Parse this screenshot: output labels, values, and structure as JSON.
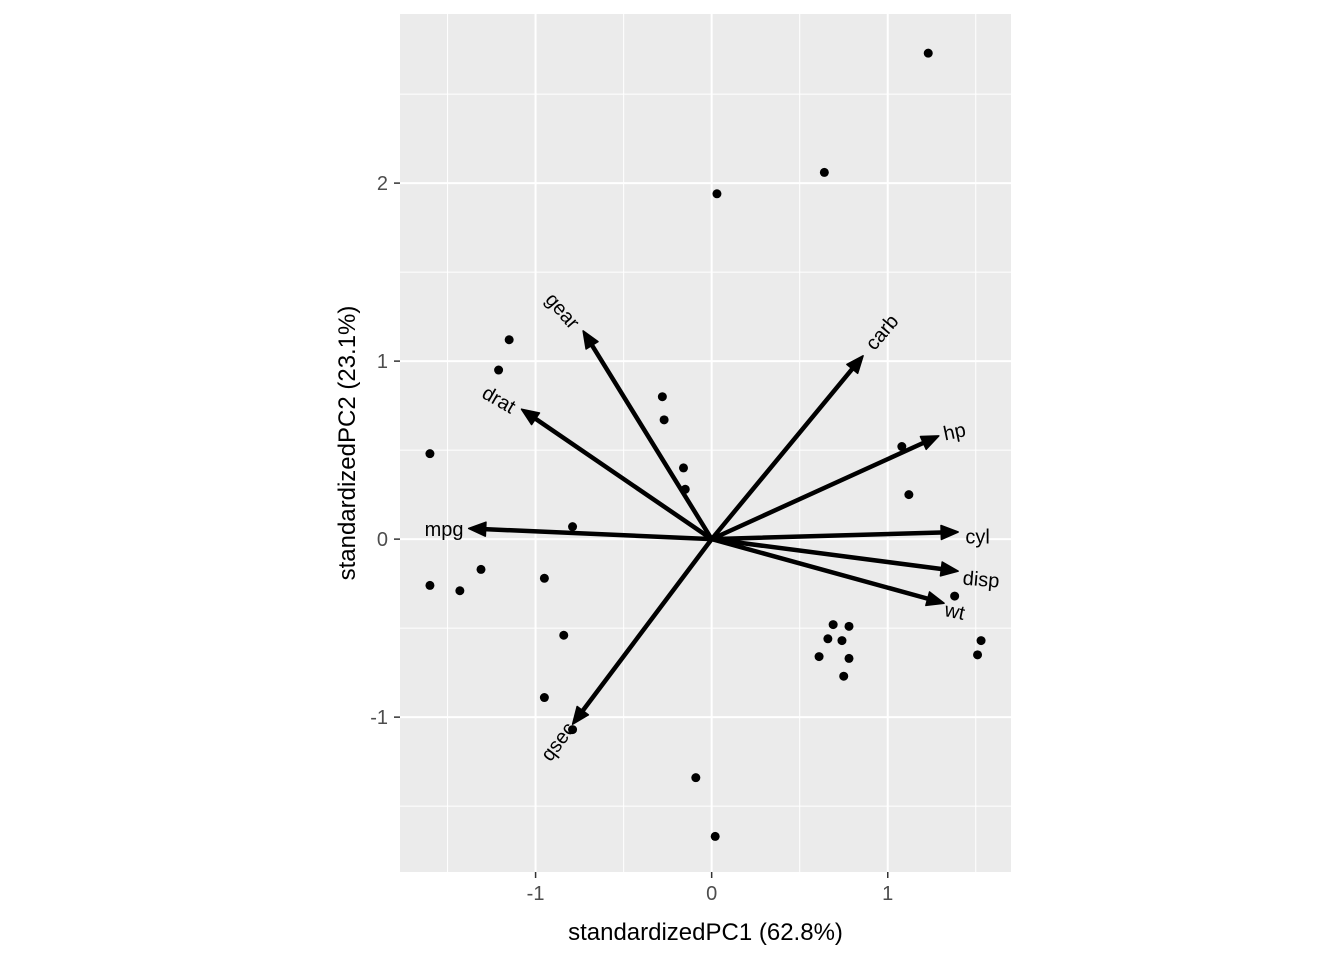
{
  "chart_data": {
    "type": "scatter",
    "subtype": "pca-biplot",
    "xlabel": "standardizedPC1 (62.8%)",
    "ylabel": "standardizedPC2 (23.1%)",
    "xlim": [
      -1.77,
      1.7
    ],
    "ylim": [
      -1.87,
      2.95
    ],
    "x_ticks": [
      -1,
      0,
      1
    ],
    "x_tick_labels": [
      "-1",
      "0",
      "1"
    ],
    "y_ticks": [
      -1,
      0,
      1,
      2
    ],
    "y_tick_labels": [
      "-1",
      "0",
      "1",
      "2"
    ],
    "grid": true,
    "background": "#ebebeb",
    "gridline_color": "#ffffff",
    "point_color": "#000000",
    "arrow_color": "#000000",
    "points": [
      {
        "x": 1.23,
        "y": 2.73
      },
      {
        "x": 0.64,
        "y": 2.06
      },
      {
        "x": 0.03,
        "y": 1.94
      },
      {
        "x": -1.15,
        "y": 1.12
      },
      {
        "x": -1.21,
        "y": 0.95
      },
      {
        "x": -0.28,
        "y": 0.8
      },
      {
        "x": -0.27,
        "y": 0.67
      },
      {
        "x": -1.6,
        "y": 0.48
      },
      {
        "x": -0.16,
        "y": 0.4
      },
      {
        "x": -0.15,
        "y": 0.28
      },
      {
        "x": 1.08,
        "y": 0.52
      },
      {
        "x": 1.12,
        "y": 0.25
      },
      {
        "x": -0.79,
        "y": 0.07
      },
      {
        "x": -1.31,
        "y": -0.17
      },
      {
        "x": -0.95,
        "y": -0.22
      },
      {
        "x": -1.6,
        "y": -0.26
      },
      {
        "x": -1.43,
        "y": -0.29
      },
      {
        "x": 1.38,
        "y": -0.32
      },
      {
        "x": -0.84,
        "y": -0.54
      },
      {
        "x": 0.69,
        "y": -0.48
      },
      {
        "x": 0.78,
        "y": -0.49
      },
      {
        "x": 0.66,
        "y": -0.56
      },
      {
        "x": 0.74,
        "y": -0.57
      },
      {
        "x": 1.53,
        "y": -0.57
      },
      {
        "x": 1.51,
        "y": -0.65
      },
      {
        "x": 0.61,
        "y": -0.66
      },
      {
        "x": 0.78,
        "y": -0.67
      },
      {
        "x": 0.75,
        "y": -0.77
      },
      {
        "x": -0.95,
        "y": -0.89
      },
      {
        "x": -0.79,
        "y": -1.07
      },
      {
        "x": -0.09,
        "y": -1.34
      },
      {
        "x": 0.02,
        "y": -1.67
      }
    ],
    "loadings": [
      {
        "name": "mpg",
        "x": -1.38,
        "y": 0.06,
        "label_x": -1.52,
        "label_y": 0.05,
        "angle": 0
      },
      {
        "name": "cyl",
        "x": 1.4,
        "y": 0.04,
        "label_x": 1.51,
        "label_y": 0.01,
        "angle": 0
      },
      {
        "name": "disp",
        "x": 1.4,
        "y": -0.18,
        "label_x": 1.53,
        "label_y": -0.23,
        "angle": 5
      },
      {
        "name": "hp",
        "x": 1.29,
        "y": 0.58,
        "label_x": 1.38,
        "label_y": 0.6,
        "angle": -12
      },
      {
        "name": "drat",
        "x": -1.08,
        "y": 0.73,
        "label_x": -1.21,
        "label_y": 0.78,
        "angle": 30
      },
      {
        "name": "wt",
        "x": 1.32,
        "y": -0.36,
        "label_x": 1.38,
        "label_y": -0.41,
        "angle": 12
      },
      {
        "name": "qsec",
        "x": -0.79,
        "y": -1.04,
        "label_x": -0.87,
        "label_y": -1.14,
        "angle": -53
      },
      {
        "name": "gear",
        "x": -0.73,
        "y": 1.17,
        "label_x": -0.85,
        "label_y": 1.28,
        "angle": 49
      },
      {
        "name": "carb",
        "x": 0.86,
        "y": 1.03,
        "label_x": 0.97,
        "label_y": 1.16,
        "angle": -50
      }
    ]
  }
}
